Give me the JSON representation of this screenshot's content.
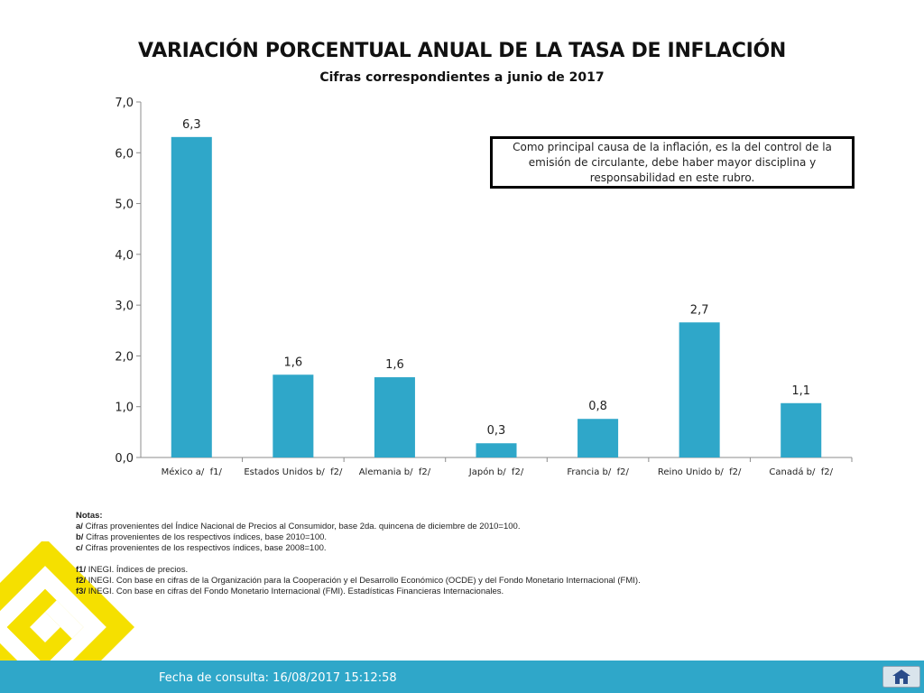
{
  "header": {
    "title": "VARIACIÓN PORCENTUAL ANUAL DE LA TASA DE INFLACIÓN",
    "subtitle": "Cifras correspondientes a junio de 2017"
  },
  "callout": {
    "text": "Como principal causa de la inflación, es la del control de la emisión de circulante, debe haber mayor disciplina y responsabilidad en este rubro."
  },
  "chart_data": {
    "type": "bar",
    "title": "VARIACIÓN PORCENTUAL ANUAL DE LA TASA DE INFLACIÓN",
    "subtitle": "Cifras correspondientes a junio de 2017",
    "categories": [
      "México a/  f1/",
      "Estados Unidos b/  f2/",
      "Alemania b/  f2/",
      "Japón b/  f2/",
      "Francia b/  f2/",
      "Reino Unido b/  f2/",
      "Canadá b/  f2/"
    ],
    "values": [
      6.31,
      1.63,
      1.58,
      0.28,
      0.76,
      2.66,
      1.07
    ],
    "data_labels": [
      "6,3",
      "1,6",
      "1,6",
      "0,3",
      "0,8",
      "2,7",
      "1,1"
    ],
    "yticks": [
      "0,0",
      "1,0",
      "2,0",
      "3,0",
      "4,0",
      "5,0",
      "6,0",
      "7,0"
    ],
    "ylim": [
      0,
      7
    ],
    "xlabel": "",
    "ylabel": "",
    "grid": false,
    "bar_color": "#2fa7c9"
  },
  "notes": {
    "heading": "Notas:",
    "a_key": "a/",
    "a_text": " Cifras provenientes del Índice Nacional de Precios al Consumidor, base 2da. quincena de diciembre de 2010=100.",
    "b_key": "b/",
    "b_text": " Cifras provenientes de los respectivos índices, base 2010=100.",
    "c_key": "c/",
    "c_text": " Cifras provenientes de los respectivos índices, base 2008=100.",
    "f1_key": "f1/",
    "f1_text": " INEGI. Índices de precios.",
    "f2_key": "f2/",
    "f2_text": " INEGI. Con base en cifras de la Organización para la Cooperación y el Desarrollo Económico (OCDE) y del Fondo Monetario Internacional (FMI).",
    "f3_key": "f3/",
    "f3_text": " INEGI. Con base en cifras del Fondo Monetario Internacional (FMI). Estadísticas Financieras Internacionales."
  },
  "footer": {
    "text": "Fecha de consulta: 16/08/2017 15:12:58",
    "home_icon": "home-icon"
  },
  "colors": {
    "accent": "#2fa7c9",
    "logo": "#f5e000"
  }
}
